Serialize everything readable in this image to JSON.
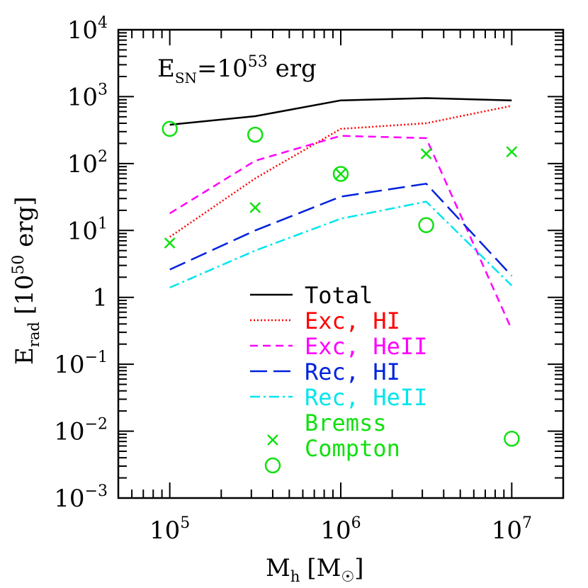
{
  "chart_data": {
    "type": "line",
    "annotation": {
      "base": "E",
      "sub": "SN",
      "mid": "=10",
      "sup": "53",
      "tail": " erg"
    },
    "xlabel": {
      "base": "M",
      "sub": "h",
      "unit": "[M",
      "unit_sub": "☉",
      "close": "]"
    },
    "ylabel": {
      "base": "E",
      "sub": "rad",
      "unit": "[10",
      "unit_sup": "50",
      "tail": " erg]"
    },
    "xscale": "log",
    "yscale": "log",
    "xlim": [
      50000,
      20000000
    ],
    "ylim": [
      0.001,
      10000
    ],
    "x_ticks": [
      {
        "base": "10",
        "sup": "5",
        "value": 100000
      },
      {
        "base": "10",
        "sup": "6",
        "value": 1000000
      },
      {
        "base": "10",
        "sup": "7",
        "value": 10000000
      }
    ],
    "y_ticks": [
      {
        "base": "10",
        "sup": "−3",
        "value": 0.001
      },
      {
        "base": "10",
        "sup": "−2",
        "value": 0.01
      },
      {
        "base": "10",
        "sup": "−1",
        "value": 0.1
      },
      {
        "base": "1",
        "sup": "",
        "value": 1
      },
      {
        "base": "10",
        "sup": "1",
        "value": 10
      },
      {
        "base": "10",
        "sup": "2",
        "value": 100
      },
      {
        "base": "10",
        "sup": "3",
        "value": 1000
      },
      {
        "base": "10",
        "sup": "4",
        "value": 10000
      }
    ],
    "x": [
      100000,
      316000,
      1000000,
      3160000,
      10000000
    ],
    "series": [
      {
        "name": "Total",
        "color": "#000000",
        "dash": "",
        "values": [
          380,
          510,
          880,
          950,
          880
        ]
      },
      {
        "name": "Exc, HI",
        "color": "#ff0000",
        "dash": "2 3",
        "values": [
          8,
          60,
          330,
          400,
          730
        ]
      },
      {
        "name": "Exc, HeII",
        "color": "#ff00ff",
        "dash": "11 7",
        "values": [
          18,
          110,
          260,
          240,
          0.33
        ]
      },
      {
        "name": "Rec, HI",
        "color": "#0022dd",
        "dash": "24 9",
        "values": [
          2.6,
          10,
          32,
          50,
          2.1
        ]
      },
      {
        "name": "Rec, HeII",
        "color": "#00e5ee",
        "dash": "14 5 3 5",
        "values": [
          1.4,
          5,
          15,
          27,
          1.5
        ]
      }
    ],
    "markers": [
      {
        "name": "Bremss",
        "shape": "x",
        "color": "#11e011",
        "values": [
          6.5,
          22,
          70,
          140,
          150
        ]
      },
      {
        "name": "Compton",
        "shape": "circle",
        "color": "#11e011",
        "values": [
          330,
          270,
          70,
          12,
          0.0077
        ]
      }
    ],
    "grid": false,
    "legend_position": "lower-center"
  }
}
